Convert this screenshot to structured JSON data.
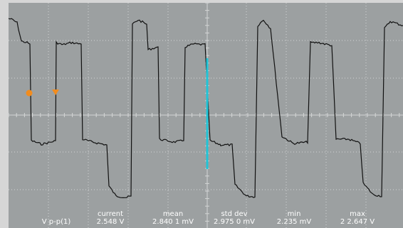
{
  "scope": {
    "colors": {
      "background": "#9ca0a1",
      "frame": "#d6d6d6",
      "grid": "#d4d6d6",
      "trace": "#111111",
      "cursor": "#22c4d6",
      "marker": "#f28c1e"
    },
    "markers": [
      {
        "name": "trigger-level-marker",
        "shape": "circle"
      },
      {
        "name": "trigger-position-marker",
        "shape": "triangle-down"
      }
    ]
  },
  "measurements": {
    "parameter_label": "V p-p(1)",
    "columns": [
      {
        "header": "current",
        "value": "2.548 V"
      },
      {
        "header": "mean",
        "value": "2.840 1 mV"
      },
      {
        "header": "std dev",
        "value": "2.975 0 mV"
      },
      {
        "header": "min",
        "value": "2.235 mV"
      },
      {
        "header": "max",
        "value": "2 2.647 V"
      }
    ]
  }
}
